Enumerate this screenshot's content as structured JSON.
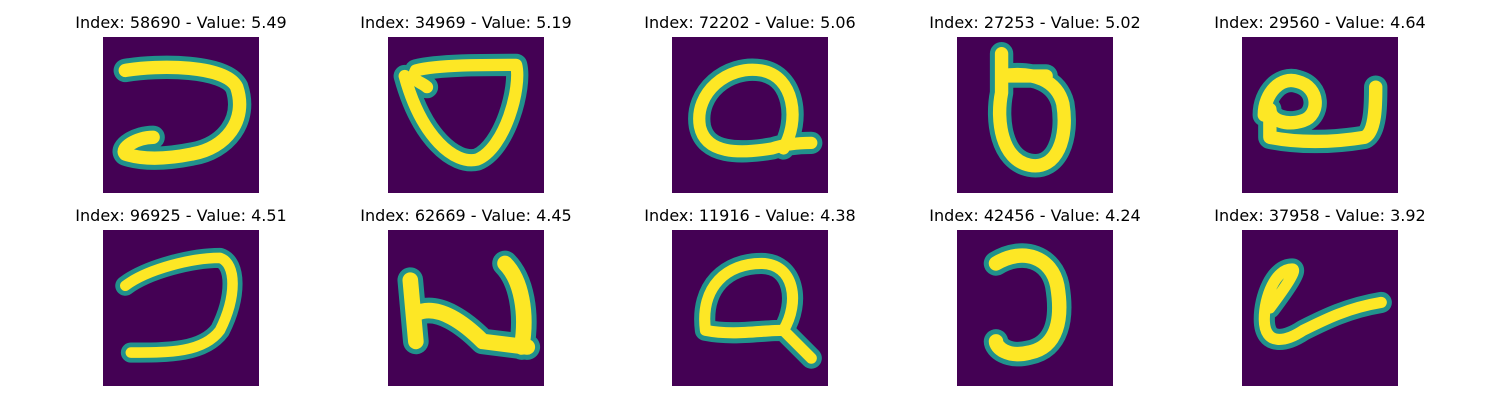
{
  "colors": {
    "background": "#440154",
    "stroke_outer": "#21918c",
    "stroke_inner": "#fde725"
  },
  "panels": [
    {
      "title": "Index: 58690 - Value: 5.49",
      "icon": "handwritten-glyph-hook"
    },
    {
      "title": "Index: 34969 - Value: 5.19",
      "icon": "handwritten-glyph-triangle-loop"
    },
    {
      "title": "Index: 72202 - Value: 5.06",
      "icon": "handwritten-glyph-loop-tail"
    },
    {
      "title": "Index: 27253 - Value: 5.02",
      "icon": "handwritten-glyph-b-shape"
    },
    {
      "title": "Index: 29560 - Value: 4.64",
      "icon": "handwritten-glyph-e-loop"
    },
    {
      "title": "Index: 96925 - Value: 4.51",
      "icon": "handwritten-glyph-hook"
    },
    {
      "title": "Index: 62669 - Value: 4.45",
      "icon": "handwritten-glyph-n-shape"
    },
    {
      "title": "Index: 11916 - Value: 4.38",
      "icon": "handwritten-glyph-loop-tail"
    },
    {
      "title": "Index: 42456 - Value: 4.24",
      "icon": "handwritten-glyph-j-shape"
    },
    {
      "title": "Index: 37958 - Value: 3.92",
      "icon": "handwritten-glyph-e-loop"
    }
  ]
}
